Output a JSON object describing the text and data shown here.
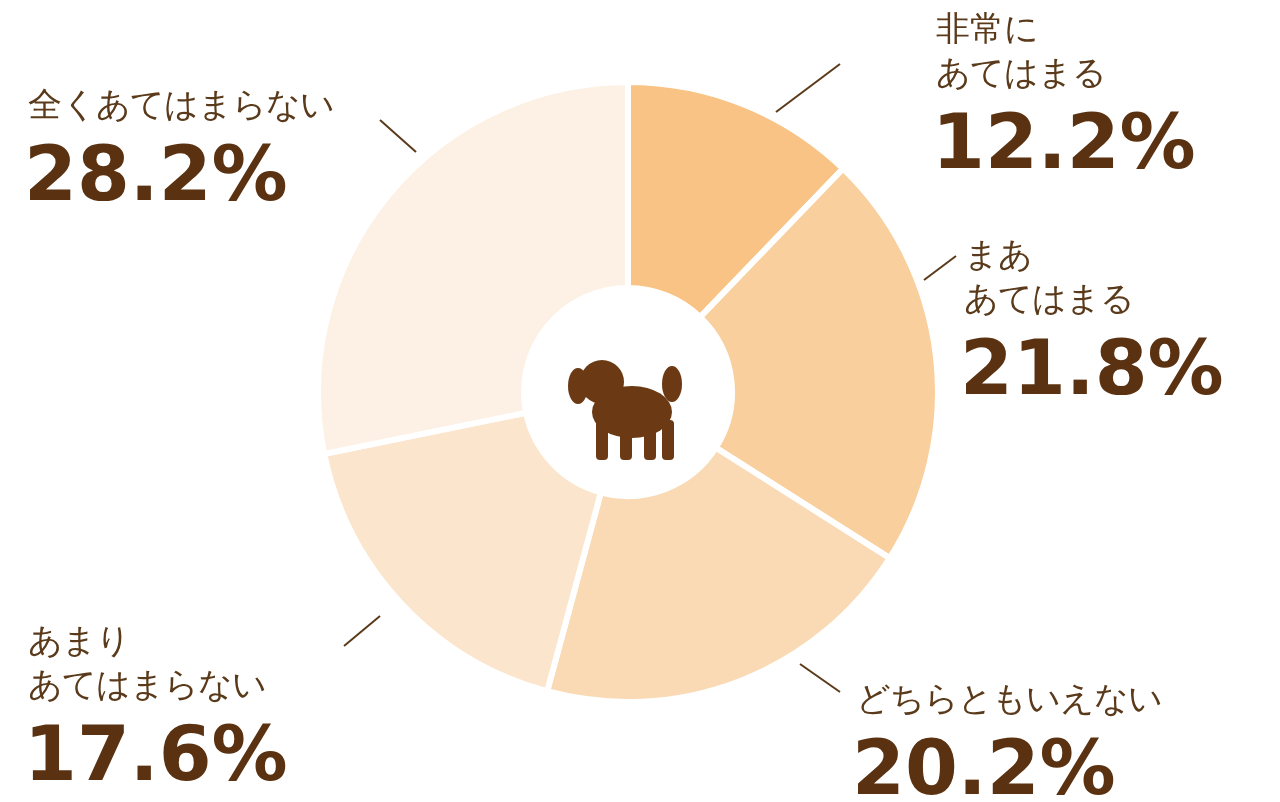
{
  "chart_data": {
    "type": "donut",
    "categories": [
      "非常にあてはまる",
      "まああてはまる",
      "どちらともいえない",
      "あまりあてはまらない",
      "全くあてはまらない"
    ],
    "values": [
      12.2,
      21.8,
      20.2,
      17.6,
      28.2
    ],
    "value_labels": [
      "12.2%",
      "21.8%",
      "20.2%",
      "17.6%",
      "28.2%"
    ],
    "colors": [
      "#f8c384",
      "#f9cf9d",
      "#fadab5",
      "#fbe5cc",
      "#fcf1e4"
    ]
  }
}
